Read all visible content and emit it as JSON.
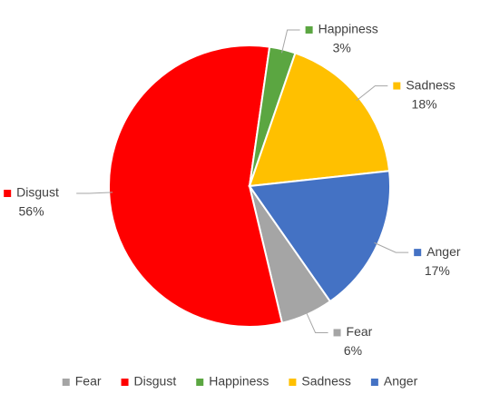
{
  "chart_data": {
    "type": "pie",
    "categories": [
      "Fear",
      "Disgust",
      "Happiness",
      "Sadness",
      "Anger"
    ],
    "values": [
      6,
      56,
      3,
      18,
      17
    ],
    "value_labels": [
      "6%",
      "56%",
      "3%",
      "18%",
      "17%"
    ],
    "colors": [
      "#a5a5a5",
      "#ff0000",
      "#5ba641",
      "#ffc000",
      "#4472c4"
    ],
    "legend": "bottom"
  }
}
